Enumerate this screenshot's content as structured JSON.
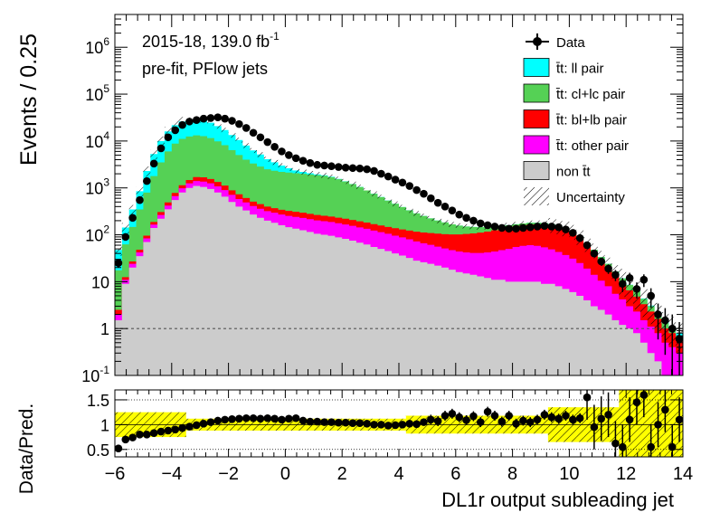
{
  "chart_data": {
    "type": "bar",
    "annotations": {
      "lumi_prefix": "2015-18, 139.0 fb",
      "lumi_exp": "-1",
      "fit": "pre-fit, PFlow jets"
    },
    "xlabel": "DL1r output subleading jet",
    "xlim": [
      -6,
      14
    ],
    "x_ticks": [
      "−6",
      "−4",
      "−2",
      "0",
      "2",
      "4",
      "6",
      "8",
      "10",
      "12",
      "14"
    ],
    "bin_width": 0.25,
    "top": {
      "ylabel": "Events / 0.25",
      "log_scale": true,
      "ylim": [
        0.1,
        5000000
      ],
      "y_ticks": [
        {
          "base": "10",
          "exp": "-1"
        },
        {
          "base": "1",
          "exp": ""
        },
        {
          "base": "10",
          "exp": ""
        },
        {
          "base": "10",
          "exp": "2"
        },
        {
          "base": "10",
          "exp": "3"
        },
        {
          "base": "10",
          "exp": "4"
        },
        {
          "base": "10",
          "exp": "5"
        },
        {
          "base": "10",
          "exp": "6"
        }
      ],
      "reference_line_y": 1
    },
    "ratio": {
      "ylabel": "Data/Pred.",
      "ylim": [
        0.35,
        1.7
      ],
      "y_ticks": [
        "0.5",
        "1",
        "1.5"
      ]
    },
    "legend": {
      "position": "top-right",
      "items": [
        {
          "label": "Data",
          "kind": "data"
        },
        {
          "label": "t̄t: ll pair",
          "kind": "fill",
          "color": "#00ffff"
        },
        {
          "label": "t̄t: cl+lc pair",
          "kind": "fill",
          "color": "#55d155"
        },
        {
          "label": "t̄t: bl+lb pair",
          "kind": "fill",
          "color": "#ff0000"
        },
        {
          "label": "t̄t: other pair",
          "kind": "fill",
          "color": "#ff00ff"
        },
        {
          "label": "non t̄t",
          "kind": "fill",
          "color": "#cccccc"
        },
        {
          "label": "Uncertainty",
          "kind": "hatch"
        }
      ]
    },
    "series": [
      {
        "name": "non t̄t",
        "color": "#cccccc",
        "values": [
          1.5,
          9,
          20,
          35,
          70,
          140,
          220,
          350,
          550,
          800,
          1000,
          1100,
          1050,
          950,
          800,
          650,
          500,
          400,
          330,
          270,
          230,
          200,
          180,
          160,
          145,
          135,
          125,
          115,
          105,
          100,
          95,
          88,
          82,
          75,
          68,
          62,
          55,
          50,
          45,
          40,
          36,
          32,
          28,
          26,
          24,
          22,
          20,
          18,
          16,
          15,
          14,
          13,
          12,
          11,
          11,
          10,
          10,
          10,
          10,
          10,
          9,
          9,
          8,
          7,
          6,
          5,
          4,
          3,
          2.5,
          2,
          1.5,
          1.2,
          1,
          0.8,
          0.5,
          0.3,
          0.2,
          0.1,
          0.1,
          0.1
        ]
      },
      {
        "name": "t̄t: other pair",
        "color": "#ff00ff",
        "values": [
          0.5,
          2,
          4,
          7,
          14,
          25,
          45,
          70,
          120,
          180,
          250,
          300,
          310,
          300,
          280,
          250,
          210,
          180,
          160,
          140,
          130,
          120,
          115,
          110,
          108,
          106,
          104,
          100,
          98,
          95,
          92,
          88,
          84,
          80,
          76,
          72,
          68,
          64,
          60,
          56,
          52,
          48,
          44,
          40,
          37,
          34,
          31,
          29,
          28,
          27,
          27,
          28,
          30,
          33,
          36,
          40,
          45,
          48,
          50,
          48,
          45,
          40,
          35,
          30,
          25,
          20,
          15,
          11,
          8,
          6,
          4,
          3,
          2,
          1.5,
          1,
          0.8,
          0.6,
          0.4,
          0.3,
          0.2
        ]
      },
      {
        "name": "t̄t: bl+lb pair",
        "color": "#ff0000",
        "values": [
          0.5,
          1.5,
          3,
          6,
          12,
          22,
          40,
          70,
          110,
          160,
          220,
          300,
          320,
          300,
          260,
          220,
          180,
          150,
          120,
          100,
          90,
          80,
          75,
          72,
          70,
          68,
          66,
          64,
          62,
          60,
          58,
          56,
          54,
          52,
          50,
          48,
          46,
          44,
          42,
          42,
          42,
          43,
          44,
          46,
          48,
          50,
          52,
          55,
          58,
          62,
          66,
          70,
          75,
          80,
          85,
          90,
          95,
          100,
          105,
          108,
          110,
          108,
          104,
          95,
          80,
          60,
          40,
          28,
          18,
          12,
          8,
          5,
          3.5,
          2.5,
          1.8,
          1.2,
          0.8,
          0.5,
          0.4,
          0.3
        ]
      },
      {
        "name": "t̄t: cl+lc pair",
        "color": "#55d155",
        "values": [
          15,
          50,
          120,
          300,
          700,
          1600,
          3200,
          5500,
          8000,
          10000,
          11000,
          11500,
          11000,
          10000,
          8500,
          7000,
          5500,
          4300,
          3400,
          2800,
          2400,
          2100,
          1950,
          1850,
          1800,
          1750,
          1700,
          1650,
          1600,
          1550,
          1450,
          1300,
          1150,
          1000,
          850,
          700,
          580,
          480,
          390,
          320,
          260,
          210,
          170,
          140,
          115,
          95,
          80,
          65,
          55,
          46,
          40,
          34,
          30,
          26,
          23,
          20,
          18,
          16,
          15,
          14,
          13,
          12,
          11,
          10,
          9,
          8,
          7,
          6,
          5,
          4,
          3,
          2.5,
          2,
          1.5,
          1,
          0.7,
          0.5,
          0.3,
          0.2,
          0.1
        ]
      },
      {
        "name": "t̄t: ll pair",
        "color": "#00ffff",
        "values": [
          30,
          80,
          200,
          500,
          1500,
          3500,
          6500,
          10000,
          13000,
          15000,
          16000,
          16000,
          15000,
          13000,
          11000,
          9000,
          7000,
          5500,
          4000,
          3000,
          2300,
          1600,
          1200,
          800,
          500,
          300,
          200,
          120,
          80,
          50,
          30,
          20,
          12,
          8,
          5,
          3,
          2,
          1.5,
          1,
          0.8,
          0.6,
          0.5,
          0.4,
          0.3,
          0.3,
          0.2,
          0.2,
          0.2,
          0.2,
          0.1,
          0.1,
          0.1,
          0.1,
          0.1,
          0.1,
          0.1,
          0.1,
          0.1,
          0.1,
          0.1,
          0.1,
          0.1,
          0.1,
          0.1,
          0.1,
          0.1,
          0.1,
          0.1,
          0.1,
          0.1,
          0.1,
          0.1,
          0.1,
          0.1,
          0.1,
          0.1,
          0.1,
          0.1,
          0.1,
          0.1
        ]
      }
    ],
    "data_points": [
      {
        "x": -5.875,
        "y": 25
      },
      {
        "x": -5.625,
        "y": 90
      },
      {
        "x": -5.375,
        "y": 230
      },
      {
        "x": -5.125,
        "y": 550
      },
      {
        "x": -4.875,
        "y": 1400
      },
      {
        "x": -4.625,
        "y": 3300
      },
      {
        "x": -4.375,
        "y": 7000
      },
      {
        "x": -4.125,
        "y": 12000
      },
      {
        "x": -3.875,
        "y": 17000
      },
      {
        "x": -3.625,
        "y": 22000
      },
      {
        "x": -3.375,
        "y": 26000
      },
      {
        "x": -3.125,
        "y": 28000
      },
      {
        "x": -2.875,
        "y": 30000
      },
      {
        "x": -2.625,
        "y": 31000
      },
      {
        "x": -2.375,
        "y": 32000
      },
      {
        "x": -2.125,
        "y": 30000
      },
      {
        "x": -1.875,
        "y": 27000
      },
      {
        "x": -1.625,
        "y": 23000
      },
      {
        "x": -1.375,
        "y": 19000
      },
      {
        "x": -1.125,
        "y": 15000
      },
      {
        "x": -0.875,
        "y": 12000
      },
      {
        "x": -0.625,
        "y": 9500
      },
      {
        "x": -0.375,
        "y": 7500
      },
      {
        "x": -0.125,
        "y": 6000
      },
      {
        "x": 0.125,
        "y": 5000
      },
      {
        "x": 0.375,
        "y": 4300
      },
      {
        "x": 0.625,
        "y": 3800
      },
      {
        "x": 0.875,
        "y": 3400
      },
      {
        "x": 1.125,
        "y": 3100
      },
      {
        "x": 1.375,
        "y": 3000
      },
      {
        "x": 1.625,
        "y": 2900
      },
      {
        "x": 1.875,
        "y": 2800
      },
      {
        "x": 2.125,
        "y": 2700
      },
      {
        "x": 2.375,
        "y": 2650
      },
      {
        "x": 2.625,
        "y": 2600
      },
      {
        "x": 2.875,
        "y": 2500
      },
      {
        "x": 3.125,
        "y": 2300
      },
      {
        "x": 3.375,
        "y": 2000
      },
      {
        "x": 3.625,
        "y": 1750
      },
      {
        "x": 3.875,
        "y": 1500
      },
      {
        "x": 4.125,
        "y": 1300
      },
      {
        "x": 4.375,
        "y": 1100
      },
      {
        "x": 4.625,
        "y": 900
      },
      {
        "x": 4.875,
        "y": 750
      },
      {
        "x": 5.125,
        "y": 600
      },
      {
        "x": 5.375,
        "y": 480
      },
      {
        "x": 5.625,
        "y": 400
      },
      {
        "x": 5.875,
        "y": 330
      },
      {
        "x": 6.125,
        "y": 270
      },
      {
        "x": 6.375,
        "y": 230
      },
      {
        "x": 6.625,
        "y": 200
      },
      {
        "x": 6.875,
        "y": 175
      },
      {
        "x": 7.125,
        "y": 160
      },
      {
        "x": 7.375,
        "y": 150
      },
      {
        "x": 7.625,
        "y": 140
      },
      {
        "x": 7.875,
        "y": 135
      },
      {
        "x": 8.125,
        "y": 135
      },
      {
        "x": 8.375,
        "y": 140
      },
      {
        "x": 8.625,
        "y": 145
      },
      {
        "x": 8.875,
        "y": 150
      },
      {
        "x": 9.125,
        "y": 155
      },
      {
        "x": 9.375,
        "y": 150
      },
      {
        "x": 9.625,
        "y": 145
      },
      {
        "x": 9.875,
        "y": 130
      },
      {
        "x": 10.125,
        "y": 110
      },
      {
        "x": 10.375,
        "y": 85
      },
      {
        "x": 10.625,
        "y": 60
      },
      {
        "x": 10.875,
        "y": 40
      },
      {
        "x": 11.125,
        "y": 27
      },
      {
        "x": 11.375,
        "y": 19
      },
      {
        "x": 11.625,
        "y": 14
      },
      {
        "x": 11.875,
        "y": 9
      },
      {
        "x": 12.125,
        "y": 12
      },
      {
        "x": 12.375,
        "y": 7
      },
      {
        "x": 12.625,
        "y": 11
      },
      {
        "x": 12.875,
        "y": 5
      },
      {
        "x": 13.125,
        "y": 2
      },
      {
        "x": 13.375,
        "y": 1.5
      },
      {
        "x": 13.625,
        "y": 1
      },
      {
        "x": 13.875,
        "y": 0.6
      }
    ],
    "ratio_points": [
      {
        "x": -5.875,
        "y": 0.52
      },
      {
        "x": -5.625,
        "y": 0.7
      },
      {
        "x": -5.375,
        "y": 0.74
      },
      {
        "x": -5.125,
        "y": 0.8
      },
      {
        "x": -4.875,
        "y": 0.8
      },
      {
        "x": -4.625,
        "y": 0.83
      },
      {
        "x": -4.375,
        "y": 0.86
      },
      {
        "x": -4.125,
        "y": 0.88
      },
      {
        "x": -3.875,
        "y": 0.9
      },
      {
        "x": -3.625,
        "y": 0.93
      },
      {
        "x": -3.375,
        "y": 0.96
      },
      {
        "x": -3.125,
        "y": 0.99
      },
      {
        "x": -2.875,
        "y": 1.02
      },
      {
        "x": -2.625,
        "y": 1.05
      },
      {
        "x": -2.375,
        "y": 1.08
      },
      {
        "x": -2.125,
        "y": 1.1
      },
      {
        "x": -1.875,
        "y": 1.11
      },
      {
        "x": -1.625,
        "y": 1.12
      },
      {
        "x": -1.375,
        "y": 1.13
      },
      {
        "x": -1.125,
        "y": 1.13
      },
      {
        "x": -0.875,
        "y": 1.12
      },
      {
        "x": -0.625,
        "y": 1.13
      },
      {
        "x": -0.375,
        "y": 1.12
      },
      {
        "x": -0.125,
        "y": 1.1
      },
      {
        "x": 0.125,
        "y": 1.12
      },
      {
        "x": 0.375,
        "y": 1.13
      },
      {
        "x": 0.625,
        "y": 1.08
      },
      {
        "x": 0.875,
        "y": 1.06
      },
      {
        "x": 1.125,
        "y": 1.06
      },
      {
        "x": 1.375,
        "y": 1.05
      },
      {
        "x": 1.625,
        "y": 1.05
      },
      {
        "x": 1.875,
        "y": 1.04
      },
      {
        "x": 2.125,
        "y": 1.04
      },
      {
        "x": 2.375,
        "y": 1.03
      },
      {
        "x": 2.625,
        "y": 1.03
      },
      {
        "x": 2.875,
        "y": 1.02
      },
      {
        "x": 3.125,
        "y": 1.0
      },
      {
        "x": 3.375,
        "y": 1.0
      },
      {
        "x": 3.625,
        "y": 0.98
      },
      {
        "x": 3.875,
        "y": 0.99
      },
      {
        "x": 4.125,
        "y": 1.0
      },
      {
        "x": 4.375,
        "y": 1.02
      },
      {
        "x": 4.625,
        "y": 1.01
      },
      {
        "x": 4.875,
        "y": 1.05
      },
      {
        "x": 5.125,
        "y": 1.1
      },
      {
        "x": 5.375,
        "y": 1.07
      },
      {
        "x": 5.625,
        "y": 1.18
      },
      {
        "x": 5.875,
        "y": 1.22
      },
      {
        "x": 6.125,
        "y": 1.15
      },
      {
        "x": 6.375,
        "y": 1.09
      },
      {
        "x": 6.625,
        "y": 1.17
      },
      {
        "x": 6.875,
        "y": 1.05
      },
      {
        "x": 7.125,
        "y": 1.26
      },
      {
        "x": 7.375,
        "y": 1.18
      },
      {
        "x": 7.625,
        "y": 1.06
      },
      {
        "x": 7.875,
        "y": 1.18
      },
      {
        "x": 8.125,
        "y": 1.02
      },
      {
        "x": 8.375,
        "y": 1.08
      },
      {
        "x": 8.625,
        "y": 1.05
      },
      {
        "x": 8.875,
        "y": 1.1
      },
      {
        "x": 9.125,
        "y": 1.2
      },
      {
        "x": 9.375,
        "y": 1.15
      },
      {
        "x": 9.625,
        "y": 1.12
      },
      {
        "x": 9.875,
        "y": 1.18
      },
      {
        "x": 10.125,
        "y": 1.1
      },
      {
        "x": 10.375,
        "y": 1.13
      },
      {
        "x": 10.625,
        "y": 1.55
      },
      {
        "x": 10.875,
        "y": 0.95
      },
      {
        "x": 11.125,
        "y": 1.12
      },
      {
        "x": 11.375,
        "y": 1.2
      },
      {
        "x": 11.625,
        "y": 0.62
      },
      {
        "x": 11.875,
        "y": 0.55
      },
      {
        "x": 12.125,
        "y": 1.1
      },
      {
        "x": 12.375,
        "y": 1.45
      },
      {
        "x": 12.625,
        "y": 1.6
      },
      {
        "x": 12.875,
        "y": 0.55
      },
      {
        "x": 13.125,
        "y": 1.0
      },
      {
        "x": 13.375,
        "y": 1.3
      },
      {
        "x": 13.625,
        "y": 0.55
      },
      {
        "x": 13.875,
        "y": 1.1
      }
    ]
  }
}
